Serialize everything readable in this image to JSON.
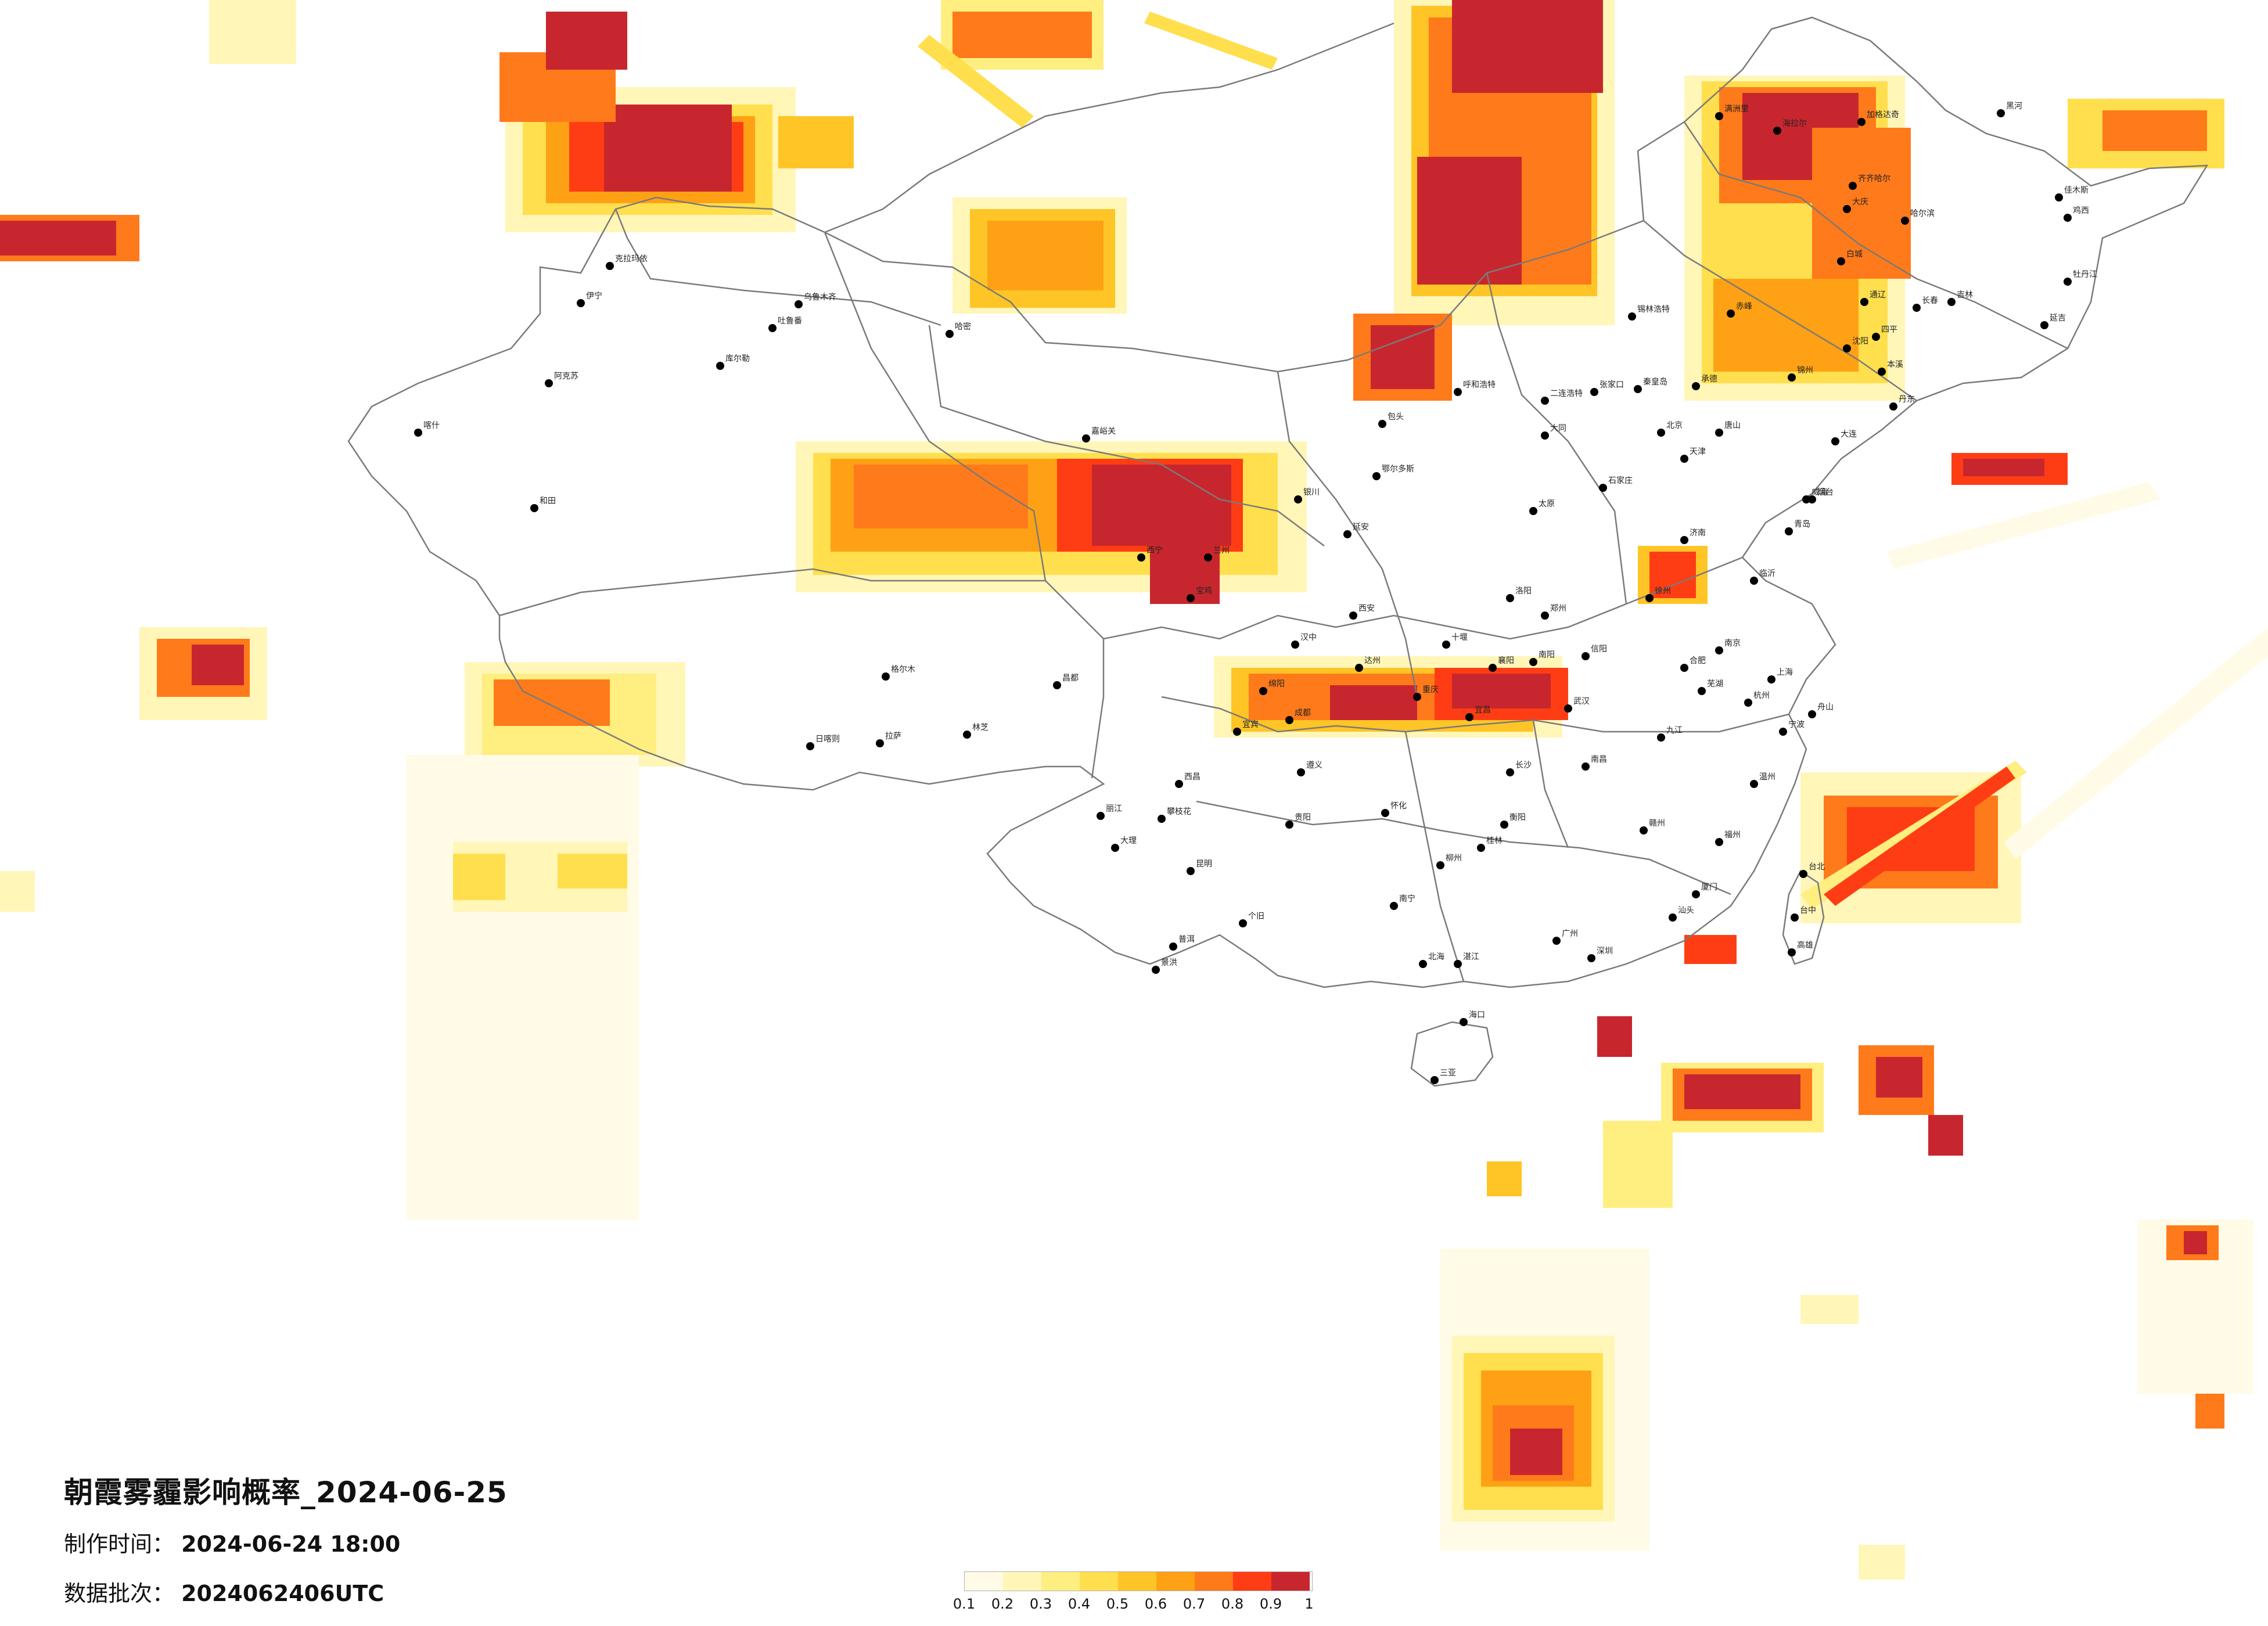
{
  "title": "朝霞雾霾影响概率_2024-06-25",
  "made_label": "制作时间：",
  "made_value": "2024-06-24 18:00",
  "batch_label": "数据批次：",
  "batch_value": "2024062406UTC",
  "legend": {
    "ticks": [
      "0.1",
      "0.2",
      "0.3",
      "0.4",
      "0.5",
      "0.6",
      "0.7",
      "0.8",
      "0.9",
      "1"
    ],
    "colors": [
      "#fffbe6",
      "#fff6b8",
      "#ffee80",
      "#ffdf4d",
      "#ffc526",
      "#ffa114",
      "#ff7a1a",
      "#ff3d14",
      "#c8262e"
    ]
  },
  "cities": [
    {
      "name": "乌鲁木齐"
    },
    {
      "name": "克拉玛依"
    },
    {
      "name": "伊宁"
    },
    {
      "name": "阿克苏"
    },
    {
      "name": "喀什"
    },
    {
      "name": "和田"
    },
    {
      "name": "哈密"
    },
    {
      "name": "吐鲁番"
    },
    {
      "name": "库尔勒"
    },
    {
      "name": "拉萨"
    },
    {
      "name": "日喀则"
    },
    {
      "name": "林芝"
    },
    {
      "name": "昌都"
    },
    {
      "name": "西宁"
    },
    {
      "name": "格尔木"
    },
    {
      "name": "嘉峪关"
    },
    {
      "name": "兰州"
    },
    {
      "name": "银川"
    },
    {
      "name": "呼和浩特"
    },
    {
      "name": "包头"
    },
    {
      "name": "鄂尔多斯"
    },
    {
      "name": "二连浩特"
    },
    {
      "name": "锡林浩特"
    },
    {
      "name": "海拉尔"
    },
    {
      "name": "满洲里"
    },
    {
      "name": "齐齐哈尔"
    },
    {
      "name": "加格达奇"
    },
    {
      "name": "黑河"
    },
    {
      "name": "哈尔滨"
    },
    {
      "name": "佳木斯"
    },
    {
      "name": "鸡西"
    },
    {
      "name": "牡丹江"
    },
    {
      "name": "大庆"
    },
    {
      "name": "长春"
    },
    {
      "name": "吉林"
    },
    {
      "name": "延吉"
    },
    {
      "name": "沈阳"
    },
    {
      "name": "大连"
    },
    {
      "name": "丹东"
    },
    {
      "name": "锦州"
    },
    {
      "name": "北京"
    },
    {
      "name": "天津"
    },
    {
      "name": "石家庄"
    },
    {
      "name": "唐山"
    },
    {
      "name": "张家口"
    },
    {
      "name": "承德"
    },
    {
      "name": "太原"
    },
    {
      "name": "大同"
    },
    {
      "name": "济南"
    },
    {
      "name": "青岛"
    },
    {
      "name": "烟台"
    },
    {
      "name": "临沂"
    },
    {
      "name": "郑州"
    },
    {
      "name": "洛阳"
    },
    {
      "name": "南阳"
    },
    {
      "name": "信阳"
    },
    {
      "name": "西安"
    },
    {
      "name": "延安"
    },
    {
      "name": "汉中"
    },
    {
      "name": "宝鸡"
    },
    {
      "name": "成都"
    },
    {
      "name": "绵阳"
    },
    {
      "name": "重庆"
    },
    {
      "name": "达州"
    },
    {
      "name": "武汉"
    },
    {
      "name": "宜昌"
    },
    {
      "name": "襄阳"
    },
    {
      "name": "十堰"
    },
    {
      "name": "长沙"
    },
    {
      "name": "衡阳"
    },
    {
      "name": "怀化"
    },
    {
      "name": "南昌"
    },
    {
      "name": "九江"
    },
    {
      "name": "赣州"
    },
    {
      "name": "合肥"
    },
    {
      "name": "芜湖"
    },
    {
      "name": "南京"
    },
    {
      "name": "徐州"
    },
    {
      "name": "上海"
    },
    {
      "name": "杭州"
    },
    {
      "name": "宁波"
    },
    {
      "name": "温州"
    },
    {
      "name": "福州"
    },
    {
      "name": "厦门"
    },
    {
      "name": "台北"
    },
    {
      "name": "台中"
    },
    {
      "name": "高雄"
    },
    {
      "name": "广州"
    },
    {
      "name": "深圳"
    },
    {
      "name": "汕头"
    },
    {
      "name": "湛江"
    },
    {
      "name": "南宁"
    },
    {
      "name": "桂林"
    },
    {
      "name": "柳州"
    },
    {
      "name": "北海"
    },
    {
      "name": "海口"
    },
    {
      "name": "三亚"
    },
    {
      "name": "贵阳"
    },
    {
      "name": "遵义"
    },
    {
      "name": "昆明"
    },
    {
      "name": "大理"
    },
    {
      "name": "丽江"
    },
    {
      "name": "普洱"
    },
    {
      "name": "景洪"
    },
    {
      "name": "个旧"
    },
    {
      "name": "西昌"
    },
    {
      "name": "攀枝花"
    },
    {
      "name": "宜宾"
    },
    {
      "name": "舟山"
    },
    {
      "name": "威海"
    },
    {
      "name": "秦皇岛"
    },
    {
      "name": "通辽"
    },
    {
      "name": "赤峰"
    },
    {
      "name": "白城"
    },
    {
      "name": "四平"
    },
    {
      "name": "本溪"
    }
  ]
}
